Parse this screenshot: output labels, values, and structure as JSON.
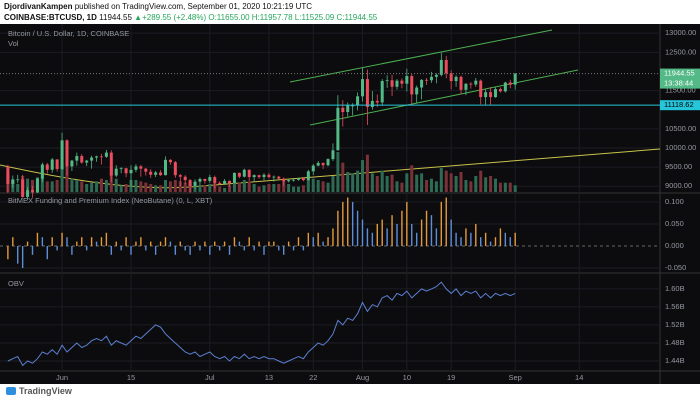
{
  "header": {
    "author": "DjordivanKampen",
    "published": "published on TradingView.com, September 01, 2020 10:21:19 UTC",
    "symbol": "COINBASE:BTCUSD, 1D",
    "last": "11944.55",
    "change": "▲+289.55 (+2.48%)",
    "ohlc": "O:11655.00 H:11957.78 L:11525.09 C:11944.55"
  },
  "footer": "TradingView",
  "chart_data": {
    "type": "candlestick",
    "title": "Bitcoin / U.S. Dollar, 1D, COINBASE",
    "up_color": "#53b987",
    "down_color": "#eb4d5c",
    "x": [
      142,
      143,
      144,
      145,
      146,
      147,
      148,
      149,
      150,
      151,
      152,
      153,
      154,
      155,
      156,
      157,
      158,
      159,
      160,
      161,
      162,
      163,
      164,
      165,
      166,
      167,
      168,
      169,
      170,
      171,
      172,
      173,
      174,
      175,
      176,
      177,
      178,
      179,
      180,
      181,
      182,
      183,
      184,
      185,
      186,
      187,
      188,
      189,
      190,
      191,
      192,
      193,
      194,
      195,
      196,
      197,
      198,
      199,
      200,
      201,
      202,
      203,
      204,
      205,
      206,
      207,
      208,
      209,
      210,
      211,
      212,
      213,
      214,
      215,
      216,
      217,
      218,
      219,
      220,
      221,
      222,
      223,
      224,
      225,
      226,
      227,
      228,
      229,
      230,
      231,
      232,
      233,
      234,
      235,
      236,
      237,
      238,
      239,
      240,
      241,
      242,
      243,
      244,
      245
    ],
    "open": [
      9510,
      9060,
      9180,
      9180,
      8720,
      8900,
      8840,
      9200,
      9570,
      9430,
      9700,
      9450,
      10200,
      9520,
      9670,
      9790,
      9620,
      9670,
      9750,
      9780,
      9770,
      9880,
      9280,
      9460,
      9470,
      9340,
      9430,
      9520,
      9460,
      9380,
      9300,
      9360,
      9290,
      9690,
      9630,
      9290,
      9250,
      9160,
      9010,
      9120,
      9190,
      9140,
      9240,
      9090,
      9060,
      9140,
      9080,
      9350,
      9250,
      9430,
      9240,
      9290,
      9240,
      9300,
      9240,
      9250,
      9200,
      9130,
      9160,
      9170,
      9210,
      9160,
      9390,
      9540,
      9610,
      9550,
      9710,
      9940,
      11050,
      10940,
      11110,
      11110,
      11350,
      11800,
      11070,
      11230,
      11190,
      11750,
      11770,
      11600,
      11760,
      11680,
      11880,
      11400,
      11580,
      11780,
      11770,
      11860,
      11910,
      12300,
      11950,
      11750,
      11860,
      11520,
      11680,
      11660,
      11760,
      11330,
      11460,
      11330,
      11540,
      11480,
      11710,
      11655
    ],
    "high": [
      9560,
      9280,
      9300,
      9300,
      8980,
      9010,
      9220,
      9620,
      9610,
      9740,
      9710,
      10400,
      10230,
      9690,
      9880,
      9840,
      9690,
      9800,
      9800,
      9850,
      9950,
      9940,
      9550,
      9500,
      9480,
      9550,
      9580,
      9560,
      9480,
      9450,
      9400,
      9420,
      9780,
      9710,
      9660,
      9320,
      9290,
      9190,
      9180,
      9230,
      9200,
      9300,
      9280,
      9130,
      9190,
      9150,
      9360,
      9360,
      9460,
      9440,
      9310,
      9300,
      9340,
      9350,
      9280,
      9270,
      9230,
      9190,
      9200,
      9220,
      9220,
      9430,
      9580,
      9660,
      9620,
      9730,
      10120,
      11380,
      11250,
      11190,
      11170,
      11450,
      12100,
      12050,
      11490,
      11400,
      11800,
      11900,
      11910,
      11800,
      11820,
      12070,
      11940,
      11630,
      11800,
      11830,
      11990,
      11950,
      12490,
      12400,
      12030,
      11900,
      11890,
      11690,
      11720,
      11830,
      11790,
      11540,
      11590,
      11590,
      11580,
      11730,
      11780,
      11957.78
    ],
    "low": [
      8820,
      8960,
      9080,
      8700,
      8640,
      8700,
      8820,
      9110,
      9330,
      9350,
      9380,
      9420,
      9280,
      9400,
      9540,
      9590,
      9530,
      9460,
      9640,
      9570,
      9740,
      9110,
      9240,
      9340,
      9240,
      8980,
      9370,
      9250,
      9280,
      9220,
      9240,
      9270,
      9280,
      9560,
      9220,
      9000,
      9050,
      8830,
      8940,
      9010,
      9070,
      9090,
      8940,
      9030,
      9040,
      8980,
      9070,
      9210,
      9230,
      9140,
      9120,
      9200,
      9160,
      9200,
      9120,
      9180,
      9010,
      9100,
      9120,
      9140,
      9130,
      9160,
      9290,
      9520,
      9450,
      9520,
      9660,
      9930,
      10560,
      10820,
      10850,
      10980,
      11210,
      10600,
      11000,
      11070,
      11100,
      11570,
      11360,
      11530,
      11560,
      11480,
      11130,
      11180,
      11270,
      11650,
      11700,
      11690,
      11870,
      11820,
      11530,
      11600,
      11400,
      11380,
      11550,
      11600,
      11140,
      11130,
      11130,
      11310,
      11450,
      11450,
      11560,
      11525.09
    ],
    "close": [
      9060,
      9180,
      9180,
      8720,
      8900,
      8840,
      9200,
      9570,
      9430,
      9700,
      9450,
      10200,
      9520,
      9670,
      9790,
      9620,
      9670,
      9750,
      9780,
      9770,
      9880,
      9280,
      9460,
      9470,
      9340,
      9430,
      9520,
      9460,
      9380,
      9300,
      9360,
      9290,
      9690,
      9630,
      9290,
      9250,
      9160,
      9010,
      9120,
      9190,
      9140,
      9240,
      9090,
      9060,
      9140,
      9080,
      9350,
      9250,
      9430,
      9240,
      9290,
      9240,
      9300,
      9240,
      9250,
      9200,
      9130,
      9160,
      9170,
      9210,
      9160,
      9390,
      9540,
      9610,
      9550,
      9710,
      9940,
      11050,
      10940,
      11110,
      11110,
      11350,
      11800,
      11070,
      11230,
      11190,
      11750,
      11770,
      11600,
      11760,
      11680,
      11880,
      11400,
      11580,
      11780,
      11770,
      11860,
      11910,
      12300,
      11950,
      11750,
      11860,
      11520,
      11680,
      11660,
      11760,
      11330,
      11460,
      11330,
      11540,
      11480,
      11710,
      11655,
      11944.55
    ],
    "xlim": [
      140.4,
      274.4
    ],
    "xticks": [
      {
        "value": 153,
        "label": "Jun"
      },
      {
        "value": 167,
        "label": "15"
      },
      {
        "value": 183,
        "label": "Jul"
      },
      {
        "value": 195,
        "label": "13"
      },
      {
        "value": 204,
        "label": "22"
      },
      {
        "value": 214,
        "label": "Aug"
      },
      {
        "value": 223,
        "label": "10"
      },
      {
        "value": 232,
        "label": "19"
      },
      {
        "value": 245,
        "label": "Sep"
      },
      {
        "value": 258,
        "label": "14"
      }
    ],
    "ylim": [
      8850,
      13240
    ],
    "yticks": [
      {
        "value": 13000,
        "label": "13000.00"
      },
      {
        "value": 12500,
        "label": "12500.00"
      },
      {
        "value": 11500,
        "label": "11500.00"
      },
      {
        "value": 10500,
        "label": "10500.00"
      },
      {
        "value": 10000,
        "label": "10000.00"
      },
      {
        "value": 9500,
        "label": "9500.00"
      },
      {
        "value": 9000,
        "label": "9000.00"
      }
    ],
    "grid": true,
    "hline": 11118.62,
    "countdown": "13:38:44",
    "volume": {
      "title": "Vol",
      "ylim": [
        0,
        45
      ],
      "up_color": "#2d6b55",
      "down_color": "#7a3138",
      "values": [
        14,
        9,
        6,
        12,
        10,
        9,
        11,
        11,
        8,
        8,
        9,
        20,
        24,
        10,
        9,
        8,
        6,
        7,
        8,
        10,
        9,
        19,
        10,
        5,
        6,
        9,
        9,
        8,
        7,
        6,
        5,
        5,
        9,
        8,
        9,
        8,
        7,
        6,
        6,
        5,
        5,
        6,
        7,
        4,
        3,
        5,
        9,
        7,
        9,
        8,
        6,
        4,
        5,
        6,
        6,
        6,
        8,
        6,
        4,
        4,
        5,
        9,
        10,
        9,
        8,
        7,
        12,
        30,
        22,
        15,
        14,
        16,
        24,
        28,
        14,
        12,
        16,
        12,
        13,
        8,
        7,
        14,
        20,
        13,
        14,
        9,
        10,
        8,
        18,
        16,
        14,
        12,
        15,
        9,
        8,
        12,
        16,
        11,
        12,
        10,
        7,
        7,
        7,
        5
      ]
    },
    "funding": {
      "title": "BitMEX Funding and Premium Index (NeoButane) (0, L, XBT)",
      "rising_color": "#e39a3b",
      "falling_color": "#5d8fd8",
      "ylim": [
        -0.059,
        0.118
      ],
      "yticks": [
        {
          "value": 0.1,
          "label": "0.100"
        },
        {
          "value": 0.05,
          "label": "0.050"
        },
        {
          "value": 0,
          "label": "0.000"
        },
        {
          "value": -0.05,
          "label": "-0.050"
        }
      ],
      "values": [
        -0.03,
        0.02,
        -0.04,
        -0.05,
        0.01,
        -0.02,
        0.03,
        0.02,
        -0.03,
        0.02,
        -0.01,
        0.03,
        0.02,
        -0.02,
        0.01,
        0.02,
        -0.01,
        0.02,
        0.01,
        0.02,
        0.03,
        -0.02,
        0.01,
        -0.01,
        0.02,
        -0.02,
        0.01,
        0.02,
        -0.01,
        0.01,
        -0.02,
        0.01,
        0.02,
        0.01,
        -0.02,
        0.01,
        -0.01,
        -0.02,
        0.01,
        -0.01,
        0.01,
        -0.02,
        0.01,
        -0.01,
        0.01,
        -0.02,
        0.02,
        0.01,
        -0.01,
        0.02,
        -0.01,
        0.01,
        -0.02,
        0.01,
        0.01,
        -0.01,
        -0.02,
        0.01,
        -0.01,
        0.02,
        -0.01,
        0.03,
        0.02,
        0.03,
        0.01,
        0.02,
        0.04,
        0.08,
        0.1,
        0.11,
        0.1,
        0.08,
        0.06,
        0.04,
        0.03,
        0.05,
        0.06,
        0.04,
        0.07,
        0.05,
        0.08,
        0.1,
        0.05,
        0.03,
        0.06,
        0.08,
        0.07,
        0.04,
        0.1,
        0.11,
        0.06,
        0.03,
        0.02,
        0.04,
        0.03,
        0.05,
        0.02,
        0.03,
        0.01,
        0.02,
        0.04,
        0.03,
        0.02,
        0.03
      ]
    },
    "obv": {
      "title": "OBV",
      "color": "#5b7fd0",
      "ylim": [
        1.42,
        1.633
      ],
      "yticks": [
        {
          "value": 1.6,
          "label": "1.60B"
        },
        {
          "value": 1.56,
          "label": "1.56B"
        },
        {
          "value": 1.52,
          "label": "1.52B"
        },
        {
          "value": 1.48,
          "label": "1.48B"
        },
        {
          "value": 1.44,
          "label": "1.44B"
        }
      ],
      "values": [
        1.44,
        1.445,
        1.45,
        1.43,
        1.44,
        1.435,
        1.445,
        1.46,
        1.455,
        1.465,
        1.455,
        1.475,
        1.46,
        1.47,
        1.48,
        1.47,
        1.475,
        1.485,
        1.49,
        1.485,
        1.495,
        1.475,
        1.485,
        1.48,
        1.475,
        1.485,
        1.495,
        1.49,
        1.5,
        1.51,
        1.52,
        1.515,
        1.5,
        1.49,
        1.48,
        1.47,
        1.46,
        1.455,
        1.46,
        1.45,
        1.455,
        1.46,
        1.45,
        1.445,
        1.45,
        1.44,
        1.45,
        1.445,
        1.455,
        1.445,
        1.45,
        1.445,
        1.45,
        1.445,
        1.445,
        1.44,
        1.435,
        1.44,
        1.445,
        1.45,
        1.445,
        1.46,
        1.47,
        1.48,
        1.475,
        1.485,
        1.5,
        1.53,
        1.52,
        1.535,
        1.53,
        1.545,
        1.57,
        1.55,
        1.565,
        1.56,
        1.58,
        1.585,
        1.575,
        1.59,
        1.585,
        1.595,
        1.58,
        1.59,
        1.6,
        1.595,
        1.6,
        1.605,
        1.615,
        1.6,
        1.59,
        1.6,
        1.585,
        1.595,
        1.59,
        1.595,
        1.58,
        1.59,
        1.58,
        1.59,
        1.585,
        1.59,
        1.585,
        1.59
      ]
    }
  }
}
